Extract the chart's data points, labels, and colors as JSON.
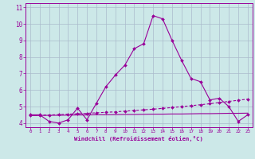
{
  "xlabel": "Windchill (Refroidissement éolien,°C)",
  "bg_color": "#cce8e8",
  "line_color": "#990099",
  "grid_color": "#aabbcc",
  "x_values": [
    0,
    1,
    2,
    3,
    4,
    5,
    6,
    7,
    8,
    9,
    10,
    11,
    12,
    13,
    14,
    15,
    16,
    17,
    18,
    19,
    20,
    21,
    22,
    23
  ],
  "line1_y": [
    4.5,
    4.5,
    4.1,
    4.0,
    4.2,
    4.9,
    4.2,
    5.2,
    6.2,
    6.9,
    7.5,
    8.5,
    8.8,
    10.5,
    10.3,
    9.0,
    7.8,
    6.7,
    6.5,
    5.4,
    5.5,
    5.0,
    4.1,
    4.5
  ],
  "line2_y": [
    4.45,
    4.47,
    4.49,
    4.51,
    4.54,
    4.56,
    4.59,
    4.62,
    4.65,
    4.68,
    4.72,
    4.76,
    4.8,
    4.84,
    4.89,
    4.94,
    4.99,
    5.05,
    5.11,
    5.17,
    5.24,
    5.31,
    5.38,
    5.45
  ],
  "line3_y": [
    4.45,
    4.46,
    4.47,
    4.47,
    4.48,
    4.49,
    4.49,
    4.5,
    4.5,
    4.51,
    4.52,
    4.52,
    4.53,
    4.54,
    4.54,
    4.55,
    4.55,
    4.56,
    4.57,
    4.57,
    4.58,
    4.59,
    4.59,
    4.6
  ],
  "ylim": [
    3.75,
    11.25
  ],
  "xlim": [
    -0.5,
    23.5
  ],
  "yticks": [
    4,
    5,
    6,
    7,
    8,
    9,
    10,
    11
  ],
  "xticks": [
    0,
    1,
    2,
    3,
    4,
    5,
    6,
    7,
    8,
    9,
    10,
    11,
    12,
    13,
    14,
    15,
    16,
    17,
    18,
    19,
    20,
    21,
    22,
    23
  ]
}
